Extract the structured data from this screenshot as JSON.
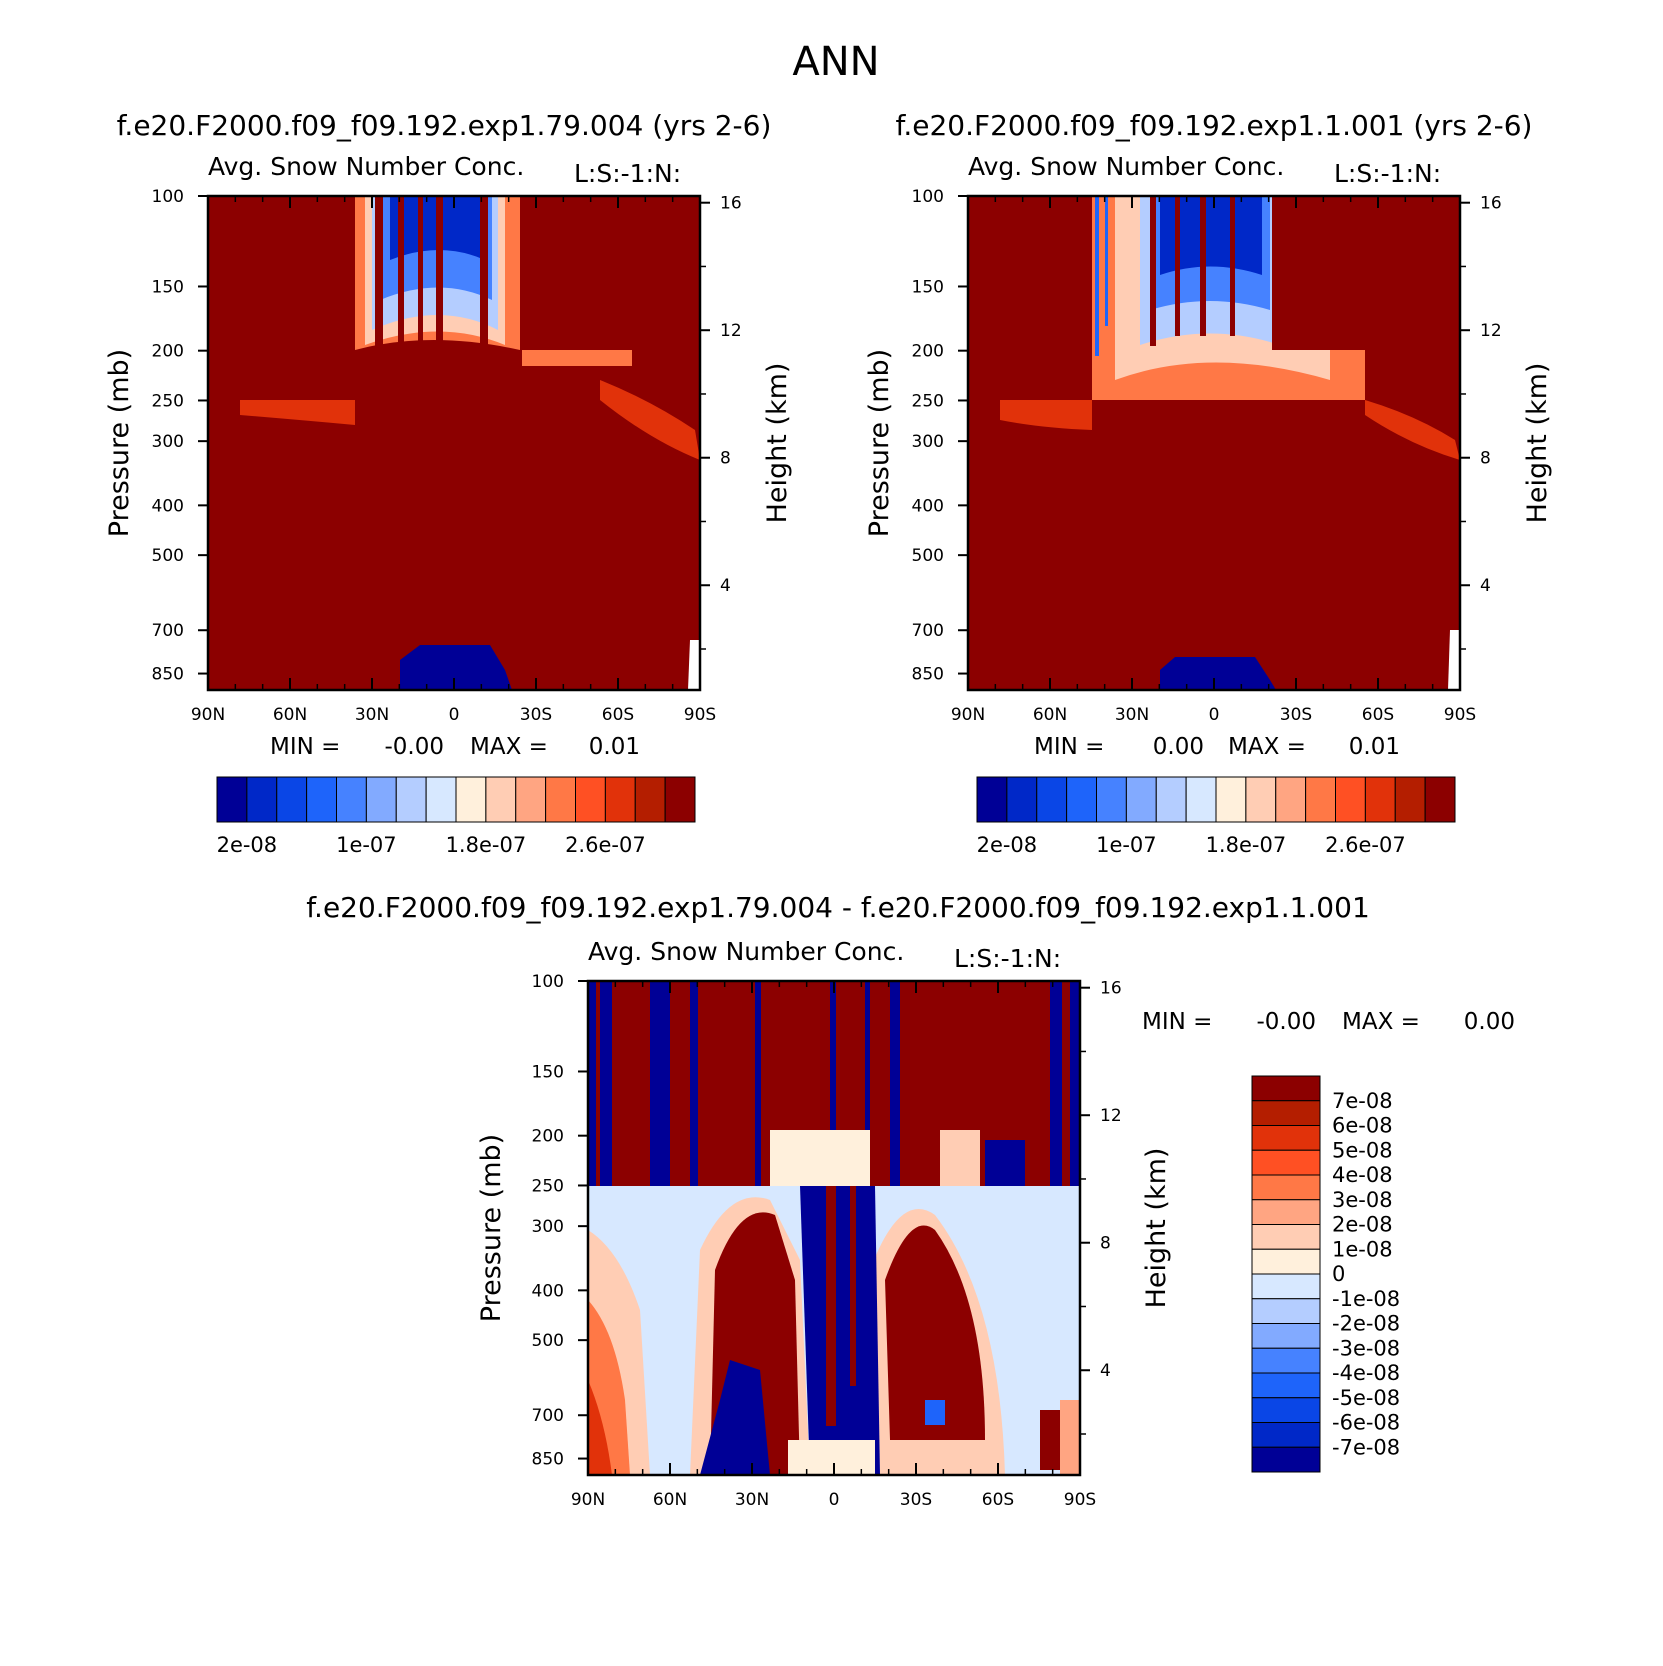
{
  "figure_title": "ANN",
  "colors": {
    "seq": [
      "#000096",
      "#0028c8",
      "#0a46e6",
      "#1e64fa",
      "#4682ff",
      "#82aaff",
      "#b4cdff",
      "#d7e8ff",
      "#fff0dc",
      "#ffcdb4",
      "#ffa582",
      "#ff7846",
      "#ff5023",
      "#e1320a",
      "#b41e00",
      "#8c0000"
    ],
    "diff": [
      "#8c0000",
      "#b41e00",
      "#e1320a",
      "#ff5023",
      "#ff7846",
      "#ffa582",
      "#ffcdb4",
      "#fff0dc",
      "#d7e8ff",
      "#b4cdff",
      "#82aaff",
      "#4682ff",
      "#1e64fa",
      "#0a46e6",
      "#0028c8",
      "#000096"
    ]
  },
  "chart_data": [
    {
      "type": "heatmap",
      "case_title": "f.e20.F2000.f09_f09.192.exp1.79.004 (yrs 2-6)",
      "title": "Avg. Snow Number Conc.",
      "units_note": "L:S:-1:N:",
      "xlabel": "",
      "ylabel": "Pressure (mb)",
      "ylabel_right": "Height (km)",
      "x_ticks": [
        "90N",
        "60N",
        "30N",
        "0",
        "30S",
        "60S",
        "90S"
      ],
      "y_ticks": [
        100,
        150,
        200,
        250,
        300,
        400,
        500,
        700,
        850
      ],
      "y_right_ticks": [
        16,
        12,
        8,
        4
      ],
      "min_label": "MIN =",
      "min_value": "-0.00",
      "max_label": "MAX =",
      "max_value": "0.01",
      "colorbar_labels": [
        "2e-08",
        "1e-07",
        "1.8e-07",
        "2.6e-07"
      ],
      "levels": [
        2e-08,
        4e-08,
        6e-08,
        8e-08,
        1e-07,
        1.2e-07,
        1.4e-07,
        1.6e-07,
        1.8e-07,
        2e-07,
        2.2e-07,
        2.4e-07,
        2.6e-07,
        2.8e-07,
        3e-07
      ]
    },
    {
      "type": "heatmap",
      "case_title": "f.e20.F2000.f09_f09.192.exp1.1.001 (yrs 2-6)",
      "title": "Avg. Snow Number Conc.",
      "units_note": "L:S:-1:N:",
      "xlabel": "",
      "ylabel": "Pressure (mb)",
      "ylabel_right": "Height (km)",
      "x_ticks": [
        "90N",
        "60N",
        "30N",
        "0",
        "30S",
        "60S",
        "90S"
      ],
      "y_ticks": [
        100,
        150,
        200,
        250,
        300,
        400,
        500,
        700,
        850
      ],
      "y_right_ticks": [
        16,
        12,
        8,
        4
      ],
      "min_label": "MIN =",
      "min_value": "0.00",
      "max_label": "MAX =",
      "max_value": "0.01",
      "colorbar_labels": [
        "2e-08",
        "1e-07",
        "1.8e-07",
        "2.6e-07"
      ],
      "levels": [
        2e-08,
        4e-08,
        6e-08,
        8e-08,
        1e-07,
        1.2e-07,
        1.4e-07,
        1.6e-07,
        1.8e-07,
        2e-07,
        2.2e-07,
        2.4e-07,
        2.6e-07,
        2.8e-07,
        3e-07
      ]
    },
    {
      "type": "heatmap",
      "case_title": "f.e20.F2000.f09_f09.192.exp1.79.004 - f.e20.F2000.f09_f09.192.exp1.1.001",
      "title": "Avg. Snow Number Conc.",
      "units_note": "L:S:-1:N:",
      "xlabel": "",
      "ylabel": "Pressure (mb)",
      "ylabel_right": "Height (km)",
      "x_ticks": [
        "90N",
        "60N",
        "30N",
        "0",
        "30S",
        "60S",
        "90S"
      ],
      "y_ticks": [
        100,
        150,
        200,
        250,
        300,
        400,
        500,
        700,
        850
      ],
      "y_right_ticks": [
        16,
        12,
        8,
        4
      ],
      "min_label": "MIN =",
      "min_value": "-0.00",
      "max_label": "MAX =",
      "max_value": "0.00",
      "colorbar_labels": [
        "7e-08",
        "6e-08",
        "5e-08",
        "4e-08",
        "3e-08",
        "2e-08",
        "1e-08",
        "0",
        "-1e-08",
        "-2e-08",
        "-3e-08",
        "-4e-08",
        "-5e-08",
        "-6e-08",
        "-7e-08"
      ],
      "levels": [
        7e-08,
        6e-08,
        5e-08,
        4e-08,
        3e-08,
        2e-08,
        1e-08,
        0,
        -1e-08,
        -2e-08,
        -3e-08,
        -4e-08,
        -5e-08,
        -6e-08,
        -7e-08
      ]
    }
  ]
}
